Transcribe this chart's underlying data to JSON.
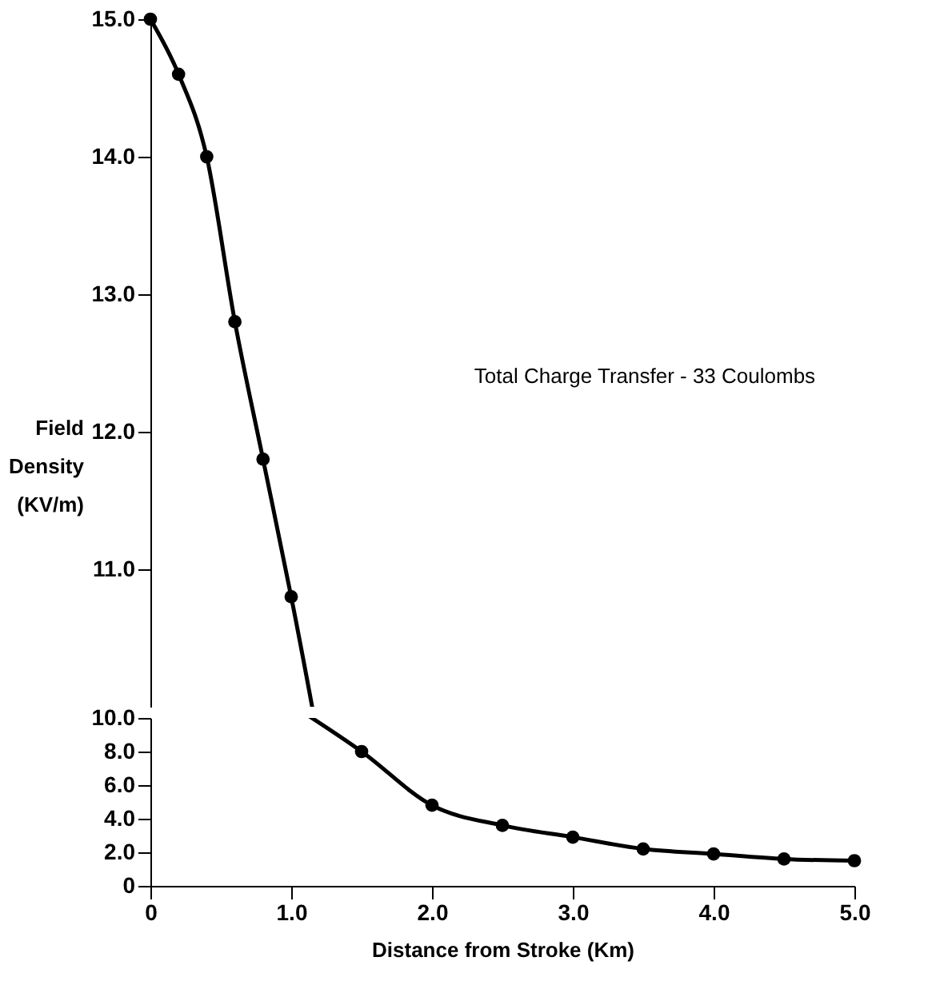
{
  "chart_data": [
    {
      "type": "line",
      "ylabel": "Field Density (KV/m)",
      "annotations": [
        "Total Charge Transfer - 33 Coulombs"
      ],
      "x": [
        0,
        0.2,
        0.4,
        0.6,
        0.8,
        1.0
      ],
      "series": [
        {
          "color": "#000000",
          "values": [
            15.0,
            14.6,
            14.0,
            12.8,
            11.8,
            10.8
          ]
        }
      ],
      "xlim": [
        0,
        5
      ],
      "ylim": [
        10,
        15
      ],
      "yticks": [
        {
          "value": 11,
          "label": "11.0"
        },
        {
          "value": 12,
          "label": "12.0"
        },
        {
          "value": 13,
          "label": "13.0"
        },
        {
          "value": 14,
          "label": "14.0"
        },
        {
          "value": 15,
          "label": "15.0"
        }
      ],
      "tick_labels": "y",
      "grid": false,
      "marker": "circle",
      "line_style": "solid"
    },
    {
      "type": "line",
      "xlabel": "Distance from Stroke (Km)",
      "x": [
        1.5,
        2.0,
        2.5,
        3.0,
        3.5,
        4.0,
        4.5,
        5.0
      ],
      "series": [
        {
          "color": "#000000",
          "values": [
            8.0,
            4.8,
            3.6,
            2.9,
            2.2,
            1.9,
            1.6,
            1.5
          ]
        }
      ],
      "xlim": [
        0,
        5
      ],
      "ylim": [
        0,
        10
      ],
      "xticks": [
        0,
        {
          "value": 1,
          "label": "1.0"
        },
        {
          "value": 2,
          "label": "2.0"
        },
        {
          "value": 3,
          "label": "3.0"
        },
        {
          "value": 4,
          "label": "4.0"
        },
        {
          "value": 5,
          "label": "5.0"
        }
      ],
      "yticks": [
        0,
        {
          "value": 2,
          "label": "2.0"
        },
        {
          "value": 4,
          "label": "4.0"
        },
        {
          "value": 6,
          "label": "6.0"
        },
        {
          "value": 8,
          "label": "8.0"
        },
        {
          "value": 10,
          "label": "10.0"
        }
      ],
      "grid": false,
      "marker": "circle",
      "line_style": "solid"
    }
  ]
}
